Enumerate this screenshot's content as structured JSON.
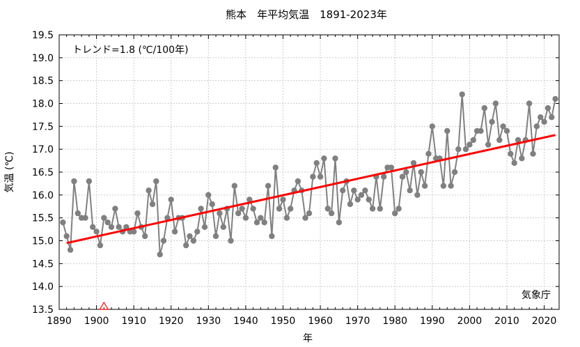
{
  "chart_data": {
    "type": "line",
    "title": "熊本　年平均気温　1891-2023年",
    "xlabel": "年",
    "ylabel": "気温 (℃)",
    "annotation_trend": "トレンド=1.8 (℃/100年)",
    "source_label": "気象庁",
    "xlim": [
      1890,
      2024
    ],
    "ylim": [
      13.5,
      19.5
    ],
    "x_ticks": [
      "1890",
      "1900",
      "1910",
      "1920",
      "1930",
      "1940",
      "1950",
      "1960",
      "1970",
      "1980",
      "1990",
      "2000",
      "2010",
      "2020"
    ],
    "y_ticks": [
      "13.5",
      "14.0",
      "14.5",
      "15.0",
      "15.5",
      "16.0",
      "16.5",
      "17.0",
      "17.5",
      "18.0",
      "18.5",
      "19.0",
      "19.5"
    ],
    "grid": true,
    "series": [
      {
        "color": "#808080",
        "x_start": 1891,
        "x_end": 2023,
        "values": [
          15.4,
          15.1,
          14.8,
          16.3,
          15.6,
          15.5,
          15.5,
          16.3,
          15.3,
          15.2,
          14.9,
          15.5,
          15.4,
          15.3,
          15.7,
          15.3,
          15.2,
          15.3,
          15.2,
          15.2,
          15.6,
          15.3,
          15.1,
          16.1,
          15.8,
          16.3,
          14.7,
          15.0,
          15.5,
          15.9,
          15.2,
          15.5,
          15.5,
          14.9,
          15.1,
          15.0,
          15.2,
          15.7,
          15.3,
          16.0,
          15.8,
          15.1,
          15.6,
          15.3,
          15.7,
          15.0,
          16.2,
          15.6,
          15.7,
          15.5,
          15.9,
          15.7,
          15.4,
          15.5,
          15.4,
          16.2,
          15.1,
          16.6,
          15.7,
          15.9,
          15.5,
          15.7,
          16.1,
          16.3,
          16.1,
          15.5,
          15.6,
          16.4,
          16.7,
          16.4,
          16.8,
          15.7,
          15.6,
          16.8,
          15.4,
          16.1,
          16.3,
          15.8,
          16.1,
          15.9,
          16.0,
          16.1,
          15.9,
          15.7,
          16.4,
          15.7,
          16.4,
          16.6,
          16.6,
          15.6,
          15.7,
          16.4,
          16.5,
          16.1,
          16.7,
          16.0,
          16.5,
          16.2,
          16.9,
          17.5,
          16.8,
          16.8,
          16.2,
          17.4,
          16.2,
          16.5,
          17.0,
          18.2,
          17.0,
          17.1,
          17.2,
          17.4,
          17.4,
          17.9,
          17.1,
          17.6,
          18.0,
          17.2,
          17.5,
          17.4,
          16.9,
          16.7,
          17.2,
          16.8,
          17.2,
          18.0,
          16.9,
          17.5,
          17.7,
          17.6,
          17.9,
          17.7,
          18.1
        ]
      },
      {
        "type": "trend",
        "color": "#ff0000",
        "x": [
          1892,
          2023
        ],
        "y": [
          14.95,
          17.31
        ]
      }
    ],
    "marker": {
      "shape": "triangle",
      "color": "#ff0000",
      "x": 1902,
      "y": 13.5
    }
  }
}
